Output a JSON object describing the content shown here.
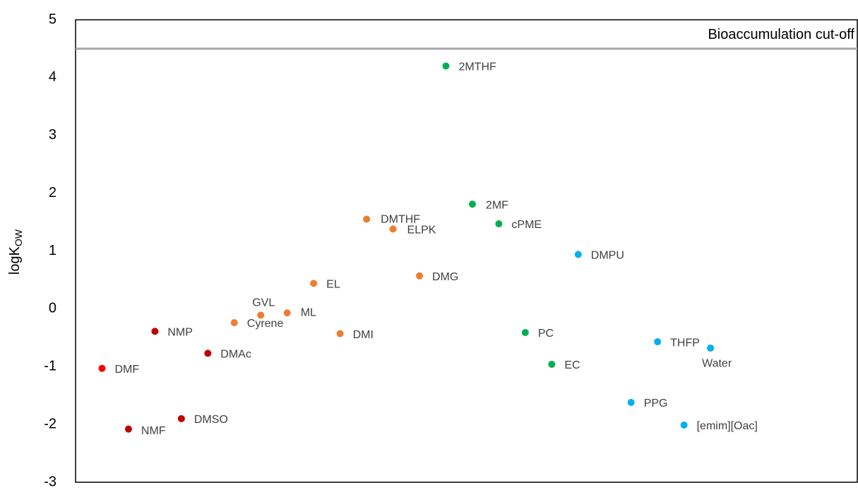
{
  "chart_data": {
    "type": "scatter",
    "y_label": "logK",
    "y_label_sub": "OW",
    "cutoff_label": "Bioaccumulation cut-off",
    "cutoff_value": 4.5,
    "ylim": [
      -3,
      5
    ],
    "yticks": [
      -3,
      -2,
      -1,
      0,
      1,
      2,
      3,
      4,
      5
    ],
    "xlim": [
      0,
      29.55
    ],
    "labels": [
      "DMF",
      "NMF",
      "NMP",
      "DMSO",
      "DMAc",
      "Cyrene",
      "GVL",
      "ML",
      "EL",
      "DMI",
      "DMTHF",
      "ELPK",
      "DMG",
      "2MTHF",
      "2MF",
      "cPME",
      "PC",
      "EC",
      "DMPU",
      "PPG",
      "THFP",
      "[emim][Oac]",
      "Water"
    ],
    "x": [
      1,
      2,
      3,
      4,
      5,
      6,
      7,
      8,
      9,
      10,
      11,
      12,
      13,
      14,
      15,
      16,
      17,
      18,
      19,
      21,
      22,
      23,
      24
    ],
    "values": [
      -1.03,
      -2.08,
      -0.39,
      -1.9,
      -0.77,
      -0.24,
      -0.11,
      -0.07,
      0.44,
      -0.43,
      1.55,
      1.38,
      0.57,
      4.2,
      1.81,
      1.47,
      -0.41,
      -0.96,
      0.94,
      -1.62,
      -0.57,
      -2.01,
      -0.68
    ],
    "colors": [
      "#ff0000",
      "#c00000",
      "#c00000",
      "#c00000",
      "#c00000",
      "#ed7d31",
      "#ed7d31",
      "#ed7d31",
      "#ed7d31",
      "#ed7d31",
      "#ed7d31",
      "#ed7d31",
      "#ed7d31",
      "#00b050",
      "#00b050",
      "#00b050",
      "#00b050",
      "#00b050",
      "#00b0f0",
      "#00b0f0",
      "#00b0f0",
      "#00b0f0",
      "#00b0f0"
    ]
  }
}
